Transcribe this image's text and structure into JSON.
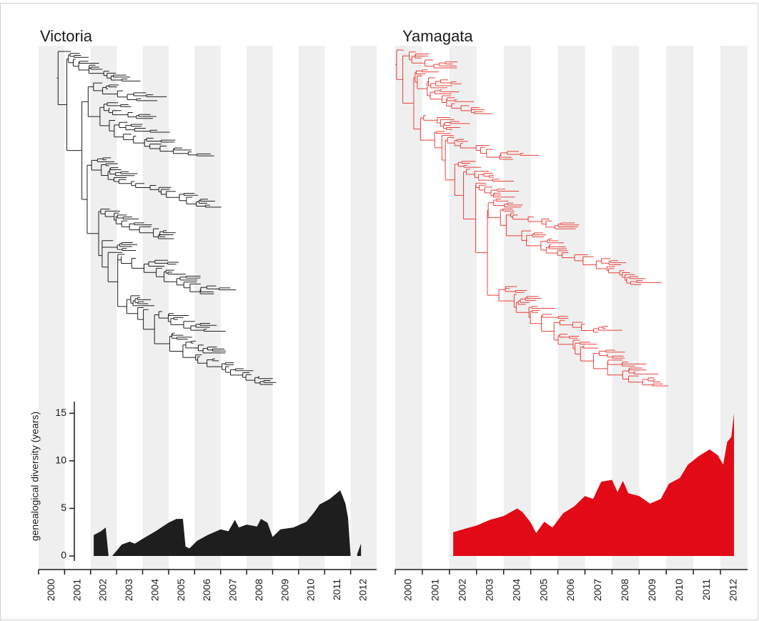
{
  "chart_data": [
    {
      "type": "area",
      "title": "Victoria",
      "color": "#1e1e1e",
      "ylabel": "genealogical diversity (years)",
      "x": [
        2002.12,
        2002.4,
        2002.58,
        2002.69,
        2002.76,
        2002.83,
        2003.2,
        2003.5,
        2003.7,
        2004.0,
        2004.5,
        2005.0,
        2005.3,
        2005.55,
        2005.65,
        2005.8,
        2006.1,
        2006.5,
        2007.0,
        2007.3,
        2007.55,
        2007.7,
        2008.0,
        2008.4,
        2008.55,
        2008.8,
        2009.0,
        2009.3,
        2009.8,
        2010.3,
        2010.6,
        2010.8,
        2011.2,
        2011.6,
        2011.8,
        2011.9,
        2012.0,
        2012.12,
        2012.25,
        2012.4
      ],
      "values": [
        2.2,
        2.6,
        3.0,
        0,
        null,
        0,
        1.2,
        1.5,
        1.3,
        1.8,
        2.6,
        3.5,
        3.9,
        3.9,
        1.0,
        0.8,
        1.6,
        2.2,
        2.8,
        2.6,
        3.8,
        3.0,
        3.3,
        3.1,
        3.9,
        3.5,
        2.0,
        2.8,
        3.0,
        3.6,
        4.6,
        5.4,
        6.0,
        6.9,
        5.5,
        4.0,
        0,
        null,
        0.2,
        1.3
      ],
      "xlim": [
        2000,
        2013
      ],
      "xticks": [
        2000,
        2001,
        2002,
        2003,
        2004,
        2005,
        2006,
        2007,
        2008,
        2009,
        2010,
        2011,
        2012
      ],
      "ylim": [
        0,
        16
      ],
      "yticks": [
        0,
        5,
        10,
        15
      ]
    },
    {
      "type": "area",
      "title": "Yamagata",
      "color": "#e20a16",
      "x": [
        2002.14,
        2002.5,
        2003.0,
        2003.5,
        2004.0,
        2004.5,
        2004.7,
        2005.0,
        2005.2,
        2005.5,
        2005.8,
        2006.2,
        2006.6,
        2007.0,
        2007.3,
        2007.6,
        2008.0,
        2008.2,
        2008.4,
        2008.6,
        2009.0,
        2009.4,
        2009.8,
        2010.1,
        2010.5,
        2010.8,
        2011.2,
        2011.6,
        2011.9,
        2012.1,
        2012.25,
        2012.4,
        2012.5
      ],
      "values": [
        2.5,
        2.8,
        3.2,
        3.8,
        4.2,
        5.0,
        4.6,
        3.5,
        2.4,
        3.6,
        3.0,
        4.5,
        5.2,
        6.3,
        6.0,
        7.8,
        8.0,
        6.7,
        7.9,
        6.6,
        6.3,
        5.5,
        6.0,
        7.6,
        8.2,
        9.6,
        10.5,
        11.2,
        10.6,
        9.6,
        12.0,
        12.5,
        15.0
      ],
      "xlim": [
        2000,
        2013
      ],
      "xticks": [
        2000,
        2001,
        2002,
        2003,
        2004,
        2005,
        2006,
        2007,
        2008,
        2009,
        2010,
        2011,
        2012
      ],
      "ylim": [
        0,
        16
      ]
    }
  ]
}
